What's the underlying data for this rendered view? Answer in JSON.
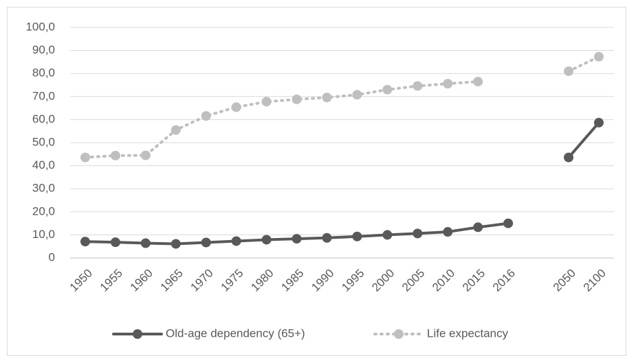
{
  "chart_data": {
    "type": "line",
    "categories": [
      "1950",
      "1955",
      "1960",
      "1965",
      "1970",
      "1975",
      "1980",
      "1985",
      "1990",
      "1995",
      "2000",
      "2005",
      "2010",
      "2015",
      "2016",
      null,
      "2050",
      "2100"
    ],
    "series": [
      {
        "name": "Old-age dependency (65+)",
        "color": "#595959",
        "line_style": "solid",
        "values": [
          7.1,
          6.8,
          6.4,
          6.1,
          6.7,
          7.3,
          7.9,
          8.3,
          8.7,
          9.3,
          10.0,
          10.6,
          11.3,
          13.3,
          15.0,
          null,
          43.6,
          58.7
        ]
      },
      {
        "name": "Life expectancy",
        "color": "#bfbfbf",
        "line_style": "dotted",
        "values": [
          43.6,
          44.4,
          44.5,
          55.5,
          61.6,
          65.4,
          67.8,
          68.8,
          69.6,
          70.8,
          73.0,
          74.6,
          75.6,
          76.5,
          null,
          null,
          81.0,
          87.3
        ]
      }
    ],
    "ylim": [
      0,
      100
    ],
    "yticks": [
      0,
      {
        "value": 10,
        "label": "10,0"
      },
      {
        "value": 20,
        "label": "20,0"
      },
      {
        "value": 30,
        "label": "30,0"
      },
      {
        "value": 40,
        "label": "40,0"
      },
      {
        "value": 50,
        "label": "50,0"
      },
      {
        "value": 60,
        "label": "60,0"
      },
      {
        "value": 70,
        "label": "70,0"
      },
      {
        "value": 80,
        "label": "80,0"
      },
      {
        "value": 90,
        "label": "90,0"
      },
      {
        "value": 100,
        "label": "100,0"
      }
    ],
    "grid": true,
    "legend": "bottom"
  }
}
